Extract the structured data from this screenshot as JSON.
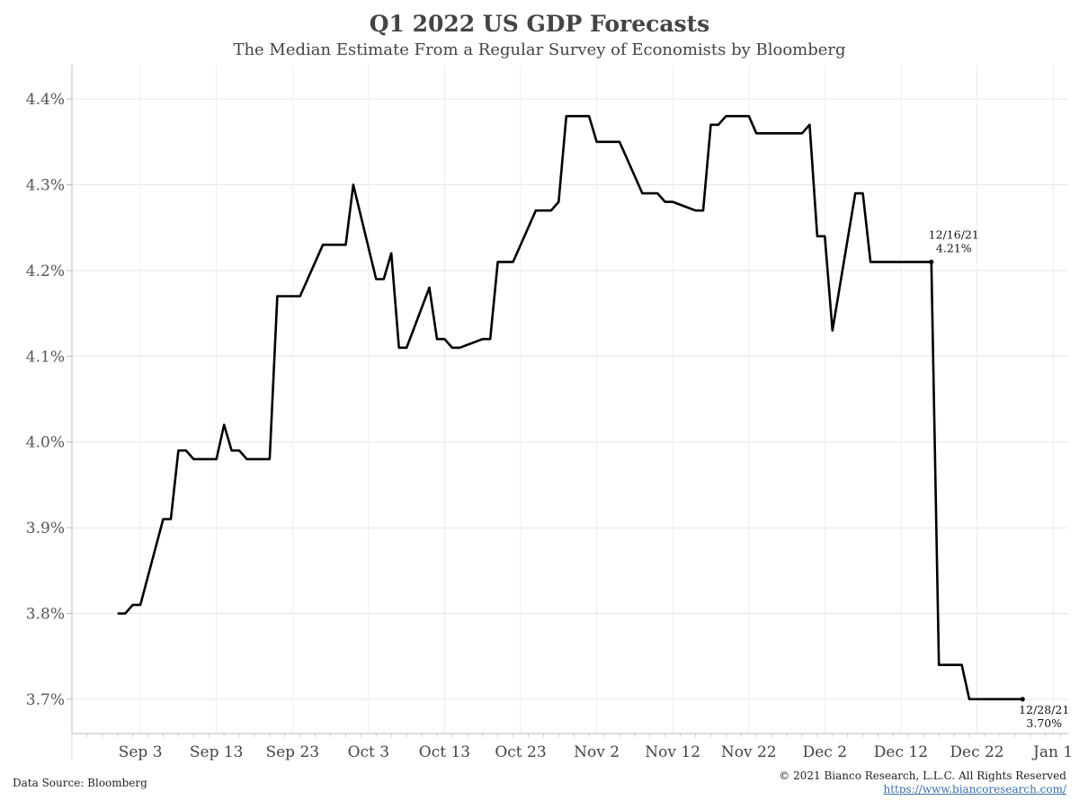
{
  "header": {
    "title": "Q1 2022 US GDP Forecasts",
    "subtitle": "The Median Estimate From a Regular Survey of Economists by Bloomberg"
  },
  "footer": {
    "source": "Data Source: Bloomberg",
    "copyright": "© 2021 Bianco Research, L.L.C. All Rights Reserved",
    "url": "https://www.biancoresearch.com/"
  },
  "chart_data": {
    "type": "line",
    "title": "Q1 2022 US GDP Forecasts",
    "subtitle": "The Median Estimate From a Regular Survey of Economists by Bloomberg",
    "xlabel": "",
    "ylabel": "",
    "xlim": [
      "2021-08-25",
      "2022-01-03"
    ],
    "ylim": [
      3.66,
      4.44
    ],
    "y_ticks": [
      3.7,
      3.8,
      3.9,
      4.0,
      4.1,
      4.2,
      4.3,
      4.4
    ],
    "y_tick_labels": [
      "3.7%",
      "3.8%",
      "3.9%",
      "4.0%",
      "4.1%",
      "4.2%",
      "4.3%",
      "4.4%"
    ],
    "x_ticks": [
      "2021-09-03",
      "2021-09-13",
      "2021-09-23",
      "2021-10-03",
      "2021-10-13",
      "2021-10-23",
      "2021-11-02",
      "2021-11-12",
      "2021-11-22",
      "2021-12-02",
      "2021-12-12",
      "2021-12-22",
      "2022-01-01"
    ],
    "x_tick_labels": [
      "Sep 3",
      "Sep 13",
      "Sep 23",
      "Oct 3",
      "Oct 13",
      "Oct 23",
      "Nov 2",
      "Nov 12",
      "Nov 22",
      "Dec 2",
      "Dec 12",
      "Dec 22",
      "Jan 1"
    ],
    "grid": true,
    "line_color": "#000000",
    "series": [
      {
        "x": [
          "2021-08-31",
          "2021-09-01",
          "2021-09-02",
          "2021-09-03",
          "2021-09-06",
          "2021-09-07",
          "2021-09-08",
          "2021-09-09",
          "2021-09-10",
          "2021-09-13",
          "2021-09-14",
          "2021-09-15",
          "2021-09-16",
          "2021-09-17",
          "2021-09-20",
          "2021-09-21",
          "2021-09-22",
          "2021-09-23",
          "2021-09-24",
          "2021-09-27",
          "2021-09-28",
          "2021-09-29",
          "2021-09-30",
          "2021-10-01",
          "2021-10-04",
          "2021-10-05",
          "2021-10-06",
          "2021-10-07",
          "2021-10-08",
          "2021-10-11",
          "2021-10-12",
          "2021-10-13",
          "2021-10-14",
          "2021-10-15",
          "2021-10-18",
          "2021-10-19",
          "2021-10-20",
          "2021-10-21",
          "2021-10-22",
          "2021-10-25",
          "2021-10-26",
          "2021-10-27",
          "2021-10-28",
          "2021-10-29",
          "2021-11-01",
          "2021-11-02",
          "2021-11-03",
          "2021-11-04",
          "2021-11-05",
          "2021-11-08",
          "2021-11-09",
          "2021-11-10",
          "2021-11-11",
          "2021-11-12",
          "2021-11-15",
          "2021-11-16",
          "2021-11-17",
          "2021-11-18",
          "2021-11-19",
          "2021-11-22",
          "2021-11-23",
          "2021-11-24",
          "2021-11-25",
          "2021-11-26",
          "2021-11-29",
          "2021-11-30",
          "2021-12-01",
          "2021-12-02",
          "2021-12-03",
          "2021-12-06",
          "2021-12-07",
          "2021-12-08",
          "2021-12-09",
          "2021-12-10",
          "2021-12-13",
          "2021-12-14",
          "2021-12-15",
          "2021-12-16",
          "2021-12-17",
          "2021-12-20",
          "2021-12-21",
          "2021-12-22",
          "2021-12-23",
          "2021-12-27",
          "2021-12-28"
        ],
        "y": [
          3.8,
          3.8,
          3.81,
          3.81,
          3.91,
          3.91,
          3.99,
          3.99,
          3.98,
          3.98,
          4.02,
          3.99,
          3.99,
          3.98,
          3.98,
          4.17,
          4.17,
          4.17,
          4.17,
          4.23,
          4.23,
          4.23,
          4.23,
          4.3,
          4.19,
          4.19,
          4.22,
          4.11,
          4.11,
          4.18,
          4.12,
          4.12,
          4.11,
          4.11,
          4.12,
          4.12,
          4.21,
          4.21,
          4.21,
          4.27,
          4.27,
          4.27,
          4.28,
          4.38,
          4.38,
          4.35,
          4.35,
          4.35,
          4.35,
          4.29,
          4.29,
          4.29,
          4.28,
          4.28,
          4.27,
          4.27,
          4.37,
          4.37,
          4.38,
          4.38,
          4.36,
          4.36,
          4.36,
          4.36,
          4.36,
          4.37,
          4.24,
          4.24,
          4.13,
          4.29,
          4.29,
          4.21,
          4.21,
          4.21,
          4.21,
          4.21,
          4.21,
          4.21,
          3.74,
          3.74,
          3.7,
          3.7,
          3.7,
          3.7,
          3.7
        ]
      }
    ],
    "annotations": [
      {
        "x": "2021-12-16",
        "y": 4.21,
        "date_label": "12/16/21",
        "value_label": "4.21%"
      },
      {
        "x": "2021-12-28",
        "y": 3.7,
        "date_label": "12/28/21",
        "value_label": "3.70%"
      }
    ]
  }
}
